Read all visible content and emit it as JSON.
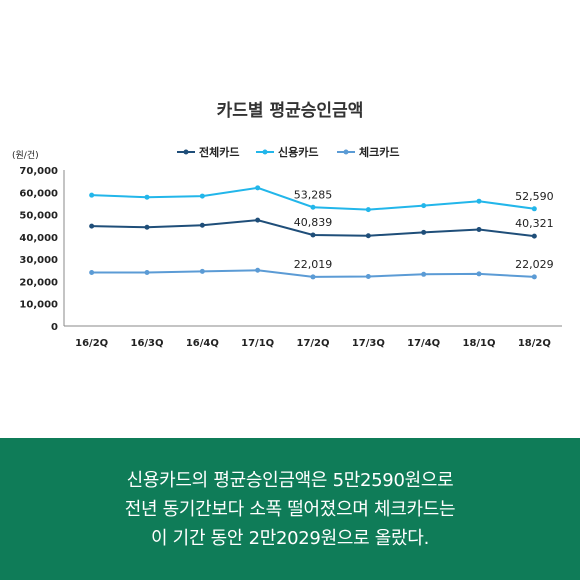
{
  "chart_data": {
    "type": "line",
    "title": "카드별 평균승인금액",
    "ylabel": "(원/건)",
    "categories": [
      "16/2Q",
      "16/3Q",
      "16/4Q",
      "17/1Q",
      "17/2Q",
      "17/3Q",
      "17/4Q",
      "18/1Q",
      "18/2Q"
    ],
    "ylim": [
      0,
      70000
    ],
    "yticks": [
      "0",
      "10,000",
      "20,000",
      "30,000",
      "40,000",
      "50,000",
      "60,000",
      "70,000"
    ],
    "grid": false,
    "legend_position": "top",
    "series": [
      {
        "name": "전체카드",
        "color": "#1f4e79",
        "values": [
          44800,
          44300,
          45200,
          47500,
          40839,
          40500,
          42000,
          43300,
          40321
        ]
      },
      {
        "name": "신용카드",
        "color": "#22b6ea",
        "values": [
          58700,
          57800,
          58300,
          62000,
          53285,
          52200,
          54000,
          56000,
          52590
        ]
      },
      {
        "name": "체크카드",
        "color": "#5b9bd5",
        "values": [
          24000,
          24000,
          24500,
          25000,
          22019,
          22200,
          23200,
          23400,
          22029
        ]
      }
    ],
    "data_labels": [
      {
        "series": 1,
        "index": 4,
        "text": "53,285"
      },
      {
        "series": 1,
        "index": 8,
        "text": "52,590"
      },
      {
        "series": 0,
        "index": 4,
        "text": "40,839"
      },
      {
        "series": 0,
        "index": 8,
        "text": "40,321"
      },
      {
        "series": 2,
        "index": 4,
        "text": "22,019"
      },
      {
        "series": 2,
        "index": 8,
        "text": "22,029"
      }
    ]
  },
  "caption": {
    "line1": "신용카드의 평균승인금액은 5만2590원으로",
    "line2": "전년 동기간보다 소폭 떨어졌으며 체크카드는",
    "line3": "이 기간 동안 2만2029원으로 올랐다."
  }
}
